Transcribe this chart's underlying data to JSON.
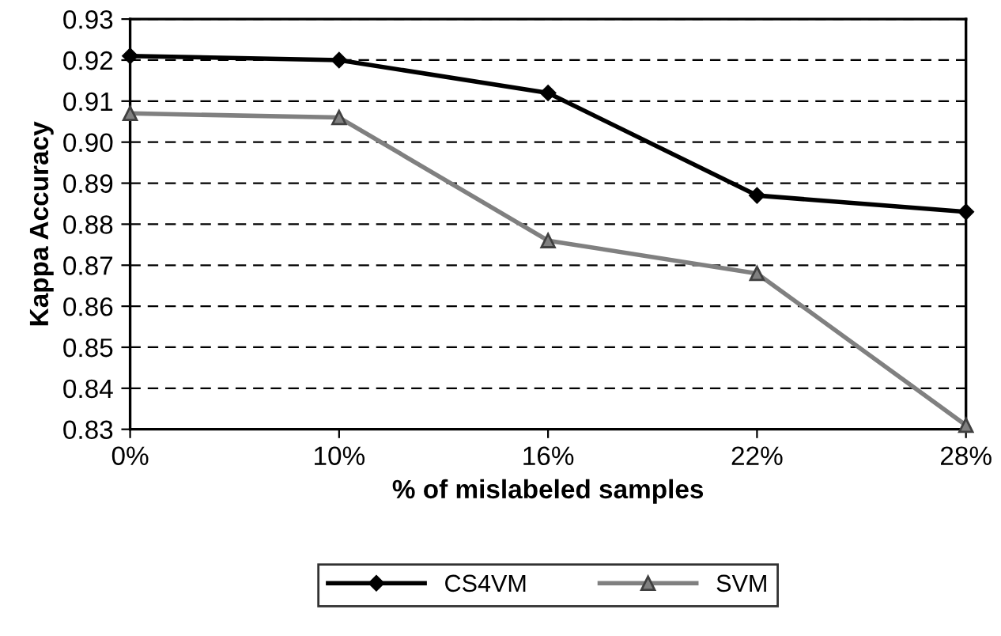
{
  "chart_data": {
    "type": "line",
    "xlabel": "% of mislabeled samples",
    "ylabel": "Kappa Accuracy",
    "categories": [
      "0%",
      "10%",
      "16%",
      "22%",
      "28%"
    ],
    "series": [
      {
        "name": "CS4VM",
        "color": "#000000",
        "marker": "diamond",
        "values": [
          0.921,
          0.92,
          0.912,
          0.887,
          0.883
        ]
      },
      {
        "name": "SVM",
        "color": "#808080",
        "marker": "triangle",
        "values": [
          0.907,
          0.906,
          0.876,
          0.868,
          0.831
        ]
      }
    ],
    "ylim": [
      0.83,
      0.93
    ],
    "yticks": [
      {
        "value": 0.83,
        "label": "0.83"
      },
      {
        "value": 0.84,
        "label": "0.84"
      },
      {
        "value": 0.85,
        "label": "0.85"
      },
      {
        "value": 0.86,
        "label": "0.86"
      },
      {
        "value": 0.87,
        "label": "0.87"
      },
      {
        "value": 0.88,
        "label": "0.88"
      },
      {
        "value": 0.89,
        "label": "0.89"
      },
      {
        "value": 0.9,
        "label": "0.90"
      },
      {
        "value": 0.91,
        "label": "0.91"
      },
      {
        "value": 0.92,
        "label": "0.92"
      },
      {
        "value": 0.93,
        "label": "0.93"
      }
    ],
    "grid": "y",
    "legend": "bottom",
    "line_style": "solid"
  }
}
